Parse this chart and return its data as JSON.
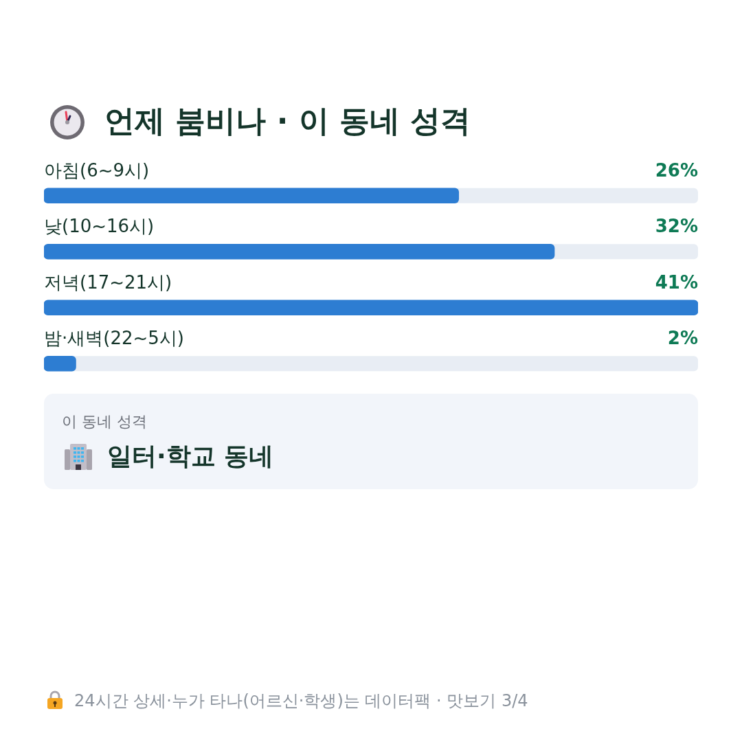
{
  "chart_data": {
    "type": "bar",
    "orientation": "horizontal",
    "title": "언제 붐비나 · 이 동네 성격",
    "categories": [
      "아침(6~9시)",
      "낮(10~16시)",
      "저녁(17~21시)",
      "밤·새벽(22~5시)"
    ],
    "values": [
      26,
      32,
      41,
      2
    ],
    "color": "#2d7dd2",
    "value_labels": [
      "26%",
      "32%",
      "41%",
      "2%"
    ],
    "xlim": [
      0,
      41
    ],
    "tick_labels": "y",
    "annotations": [
      "이 동네 성격",
      "일터·학교 동네",
      "24시간 상세·누가 타나(어르신·학생)는 데이터팩 · 맛보기 3/4"
    ]
  }
}
